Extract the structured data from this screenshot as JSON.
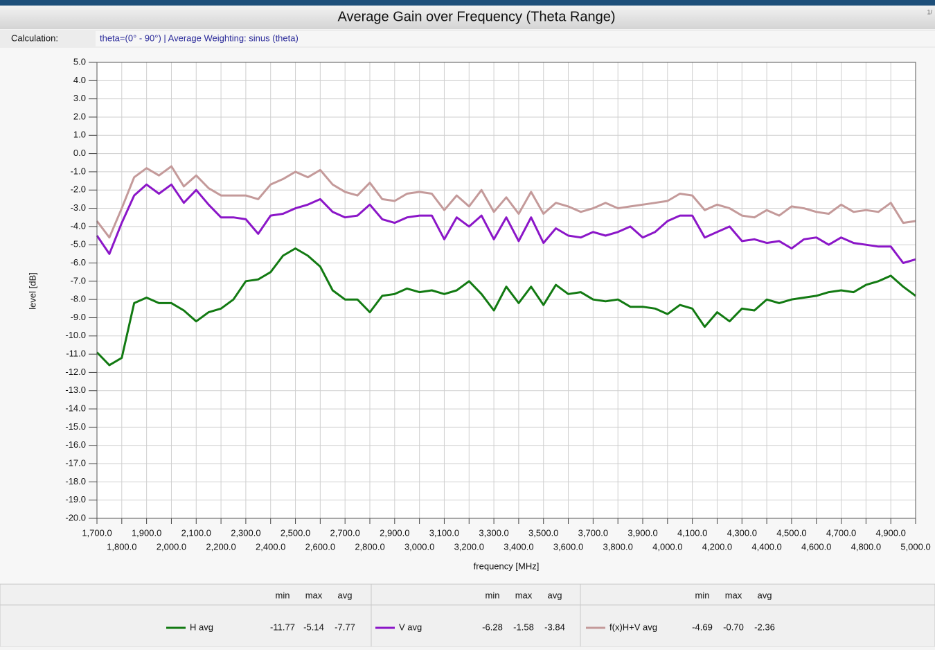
{
  "page_label": "1/",
  "calculation": {
    "label": "Calculation:",
    "value": "theta=(0° - 90°) | Average Weighting: sinus (theta)"
  },
  "chart_data": {
    "type": "line",
    "title": "Average Gain over Frequency (Theta Range)",
    "xlabel": "frequency [MHz]",
    "ylabel": "level [dB]",
    "grid": true,
    "xlim": [
      1700,
      5000
    ],
    "ylim": [
      -20,
      5
    ],
    "x": [
      1700,
      1750,
      1800,
      1850,
      1900,
      1950,
      2000,
      2050,
      2100,
      2150,
      2200,
      2250,
      2300,
      2350,
      2400,
      2450,
      2500,
      2550,
      2600,
      2650,
      2700,
      2750,
      2800,
      2850,
      2900,
      2950,
      3000,
      3050,
      3100,
      3150,
      3200,
      3250,
      3300,
      3350,
      3400,
      3450,
      3500,
      3550,
      3600,
      3650,
      3700,
      3750,
      3800,
      3850,
      3900,
      3950,
      4000,
      4050,
      4100,
      4150,
      4200,
      4250,
      4300,
      4350,
      4400,
      4450,
      4500,
      4550,
      4600,
      4650,
      4700,
      4750,
      4800,
      4850,
      4900,
      4950,
      5000
    ],
    "series": [
      {
        "name": "H avg",
        "color": "#127a12",
        "values": [
          -10.9,
          -11.6,
          -11.2,
          -8.2,
          -7.9,
          -8.2,
          -8.2,
          -8.6,
          -9.2,
          -8.7,
          -8.5,
          -8.0,
          -7.0,
          -6.9,
          -6.5,
          -5.6,
          -5.2,
          -5.6,
          -6.2,
          -7.5,
          -8.0,
          -8.0,
          -8.7,
          -7.8,
          -7.7,
          -7.4,
          -7.6,
          -7.5,
          -7.7,
          -7.5,
          -7.0,
          -7.7,
          -8.6,
          -7.3,
          -8.2,
          -7.3,
          -8.3,
          -7.2,
          -7.7,
          -7.6,
          -8.0,
          -8.1,
          -8.0,
          -8.4,
          -8.4,
          -8.5,
          -8.8,
          -8.3,
          -8.5,
          -9.5,
          -8.7,
          -9.2,
          -8.5,
          -8.6,
          -8.0,
          -8.2,
          -8.0,
          -7.9,
          -7.8,
          -7.6,
          -7.5,
          -7.6,
          -7.2,
          -7.0,
          -6.7,
          -7.3,
          -7.8
        ]
      },
      {
        "name": "V avg",
        "color": "#8b16c8",
        "values": [
          -4.5,
          -5.5,
          -3.8,
          -2.3,
          -1.7,
          -2.2,
          -1.7,
          -2.7,
          -2.0,
          -2.8,
          -3.5,
          -3.5,
          -3.6,
          -4.4,
          -3.4,
          -3.3,
          -3.0,
          -2.8,
          -2.5,
          -3.2,
          -3.5,
          -3.4,
          -2.8,
          -3.6,
          -3.8,
          -3.5,
          -3.4,
          -3.4,
          -4.7,
          -3.5,
          -4.0,
          -3.4,
          -4.7,
          -3.5,
          -4.8,
          -3.5,
          -4.9,
          -4.1,
          -4.5,
          -4.6,
          -4.3,
          -4.5,
          -4.3,
          -4.0,
          -4.6,
          -4.3,
          -3.7,
          -3.4,
          -3.4,
          -4.6,
          -4.3,
          -4.0,
          -4.8,
          -4.7,
          -4.9,
          -4.8,
          -5.2,
          -4.7,
          -4.6,
          -5.0,
          -4.6,
          -4.9,
          -5.0,
          -5.1,
          -5.1,
          -6.0,
          -5.8
        ]
      },
      {
        "name": "f(x)H+V avg",
        "color": "#c49a9a",
        "values": [
          -3.7,
          -4.6,
          -3.0,
          -1.3,
          -0.8,
          -1.2,
          -0.7,
          -1.8,
          -1.2,
          -1.9,
          -2.3,
          -2.3,
          -2.3,
          -2.5,
          -1.7,
          -1.4,
          -1.0,
          -1.3,
          -0.9,
          -1.7,
          -2.1,
          -2.3,
          -1.6,
          -2.5,
          -2.6,
          -2.2,
          -2.1,
          -2.2,
          -3.1,
          -2.3,
          -2.9,
          -2.0,
          -3.2,
          -2.4,
          -3.3,
          -2.1,
          -3.3,
          -2.7,
          -2.9,
          -3.2,
          -3.0,
          -2.7,
          -3.0,
          -2.9,
          -2.8,
          -2.7,
          -2.6,
          -2.2,
          -2.3,
          -3.1,
          -2.8,
          -3.0,
          -3.4,
          -3.5,
          -3.1,
          -3.4,
          -2.9,
          -3.0,
          -3.2,
          -3.3,
          -2.8,
          -3.2,
          -3.1,
          -3.2,
          -2.7,
          -3.8,
          -3.7
        ]
      }
    ],
    "xticks": [
      {
        "value": 1700,
        "label": "1,700.0"
      },
      {
        "value": 1800,
        "label": "1,800.0"
      },
      {
        "value": 1900,
        "label": "1,900.0"
      },
      {
        "value": 2000,
        "label": "2,000.0"
      },
      {
        "value": 2100,
        "label": "2,100.0"
      },
      {
        "value": 2200,
        "label": "2,200.0"
      },
      {
        "value": 2300,
        "label": "2,300.0"
      },
      {
        "value": 2400,
        "label": "2,400.0"
      },
      {
        "value": 2500,
        "label": "2,500.0"
      },
      {
        "value": 2600,
        "label": "2,600.0"
      },
      {
        "value": 2700,
        "label": "2,700.0"
      },
      {
        "value": 2800,
        "label": "2,800.0"
      },
      {
        "value": 2900,
        "label": "2,900.0"
      },
      {
        "value": 3000,
        "label": "3,000.0"
      },
      {
        "value": 3100,
        "label": "3,100.0"
      },
      {
        "value": 3200,
        "label": "3,200.0"
      },
      {
        "value": 3300,
        "label": "3,300.0"
      },
      {
        "value": 3400,
        "label": "3,400.0"
      },
      {
        "value": 3500,
        "label": "3,500.0"
      },
      {
        "value": 3600,
        "label": "3,600.0"
      },
      {
        "value": 3700,
        "label": "3,700.0"
      },
      {
        "value": 3800,
        "label": "3,800.0"
      },
      {
        "value": 3900,
        "label": "3,900.0"
      },
      {
        "value": 4000,
        "label": "4,000.0"
      },
      {
        "value": 4100,
        "label": "4,100.0"
      },
      {
        "value": 4200,
        "label": "4,200.0"
      },
      {
        "value": 4300,
        "label": "4,300.0"
      },
      {
        "value": 4400,
        "label": "4,400.0"
      },
      {
        "value": 4500,
        "label": "4,500.0"
      },
      {
        "value": 4600,
        "label": "4,600.0"
      },
      {
        "value": 4700,
        "label": "4,700.0"
      },
      {
        "value": 4800,
        "label": "4,800.0"
      },
      {
        "value": 4900,
        "label": "4,900.0"
      },
      {
        "value": 5000,
        "label": "5,000.0"
      }
    ],
    "yticks": [
      {
        "value": 5,
        "label": "5.0"
      },
      {
        "value": 4,
        "label": "4.0"
      },
      {
        "value": 3,
        "label": "3.0"
      },
      {
        "value": 2,
        "label": "2.0"
      },
      {
        "value": 1,
        "label": "1.0"
      },
      {
        "value": 0,
        "label": "0.0"
      },
      {
        "value": -1,
        "label": "-1.0"
      },
      {
        "value": -2,
        "label": "-2.0"
      },
      {
        "value": -3,
        "label": "-3.0"
      },
      {
        "value": -4,
        "label": "-4.0"
      },
      {
        "value": -5,
        "label": "-5.0"
      },
      {
        "value": -6,
        "label": "-6.0"
      },
      {
        "value": -7,
        "label": "-7.0"
      },
      {
        "value": -8,
        "label": "-8.0"
      },
      {
        "value": -9,
        "label": "-9.0"
      },
      {
        "value": -10,
        "label": "-10.0"
      },
      {
        "value": -11,
        "label": "-11.0"
      },
      {
        "value": -12,
        "label": "-12.0"
      },
      {
        "value": -13,
        "label": "-13.0"
      },
      {
        "value": -14,
        "label": "-14.0"
      },
      {
        "value": -15,
        "label": "-15.0"
      },
      {
        "value": -16,
        "label": "-16.0"
      },
      {
        "value": -17,
        "label": "-17.0"
      },
      {
        "value": -18,
        "label": "-18.0"
      },
      {
        "value": -19,
        "label": "-19.0"
      },
      {
        "value": -20,
        "label": "-20.0"
      }
    ]
  },
  "legend_table": {
    "headers": [
      "min",
      "max",
      "avg"
    ],
    "stats": [
      [
        "-11.77",
        "-5.14",
        "-7.77"
      ],
      [
        "-6.28",
        "-1.58",
        "-3.84"
      ],
      [
        "-4.69",
        "-0.70",
        "-2.36"
      ]
    ]
  }
}
